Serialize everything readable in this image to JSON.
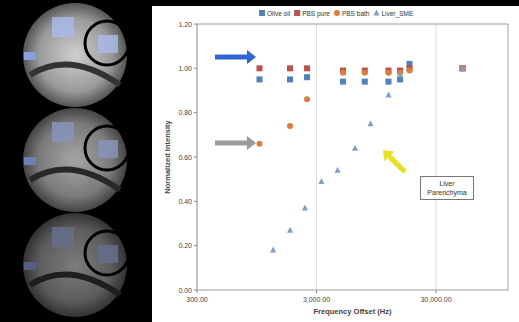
{
  "chart_data": {
    "type": "scatter",
    "x_label": "Frequency Offset (Hz)",
    "y_label": "Normalized Intensity",
    "annotation": "Liver Parenchyma",
    "log": "x",
    "grid": true,
    "legend": "top",
    "xlim": [
      300,
      120000
    ],
    "xticks": [
      {
        "value": 300,
        "label": "300.00"
      },
      {
        "value": 3000,
        "label": "3,000.00"
      },
      {
        "value": 30000,
        "label": "30,000.00"
      }
    ],
    "ylim": [
      0,
      1.2
    ],
    "yticks": [
      {
        "value": 0,
        "label": "0.00"
      },
      {
        "value": 0.2,
        "label": "0.20"
      },
      {
        "value": 0.4,
        "label": "0.40"
      },
      {
        "value": 0.6,
        "label": "0.60"
      },
      {
        "value": 0.8,
        "label": "0.80"
      },
      {
        "value": 1.0,
        "label": "1.00"
      },
      {
        "value": 1.2,
        "label": "1.20"
      }
    ],
    "series": [
      {
        "name": "Olive oil",
        "color": "#4f81bd",
        "marker": "square",
        "x": [
          1000,
          1800,
          2500,
          5000,
          7600,
          12000,
          15000,
          18000,
          50000
        ],
        "values": [
          0.95,
          0.95,
          0.96,
          0.94,
          0.94,
          0.94,
          0.95,
          1.02,
          1.0
        ]
      },
      {
        "name": "PBS pure",
        "color": "#c0504d",
        "marker": "square",
        "x": [
          1000,
          1800,
          2500,
          5000,
          7600,
          12000,
          15000,
          18000,
          50000
        ],
        "values": [
          1.0,
          1.0,
          1.0,
          0.99,
          0.99,
          0.99,
          0.99,
          1.0,
          1.0
        ]
      },
      {
        "name": "PBS bath",
        "color": "#e07b39",
        "marker": "circle",
        "x": [
          1000,
          1800,
          2500,
          5000,
          7600,
          12000,
          15000,
          18000,
          50000
        ],
        "values": [
          0.66,
          0.74,
          0.86,
          0.98,
          0.98,
          0.98,
          0.98,
          0.99,
          1.0
        ]
      },
      {
        "name": "Liver_SME",
        "color": "#7f9fc8",
        "marker": "triangle",
        "x": [
          1300,
          1800,
          2400,
          3300,
          4500,
          6300,
          8500,
          12000,
          15000,
          50000
        ],
        "values": [
          0.18,
          0.27,
          0.37,
          0.49,
          0.54,
          0.64,
          0.75,
          0.88,
          0.97,
          1.0
        ]
      }
    ]
  }
}
